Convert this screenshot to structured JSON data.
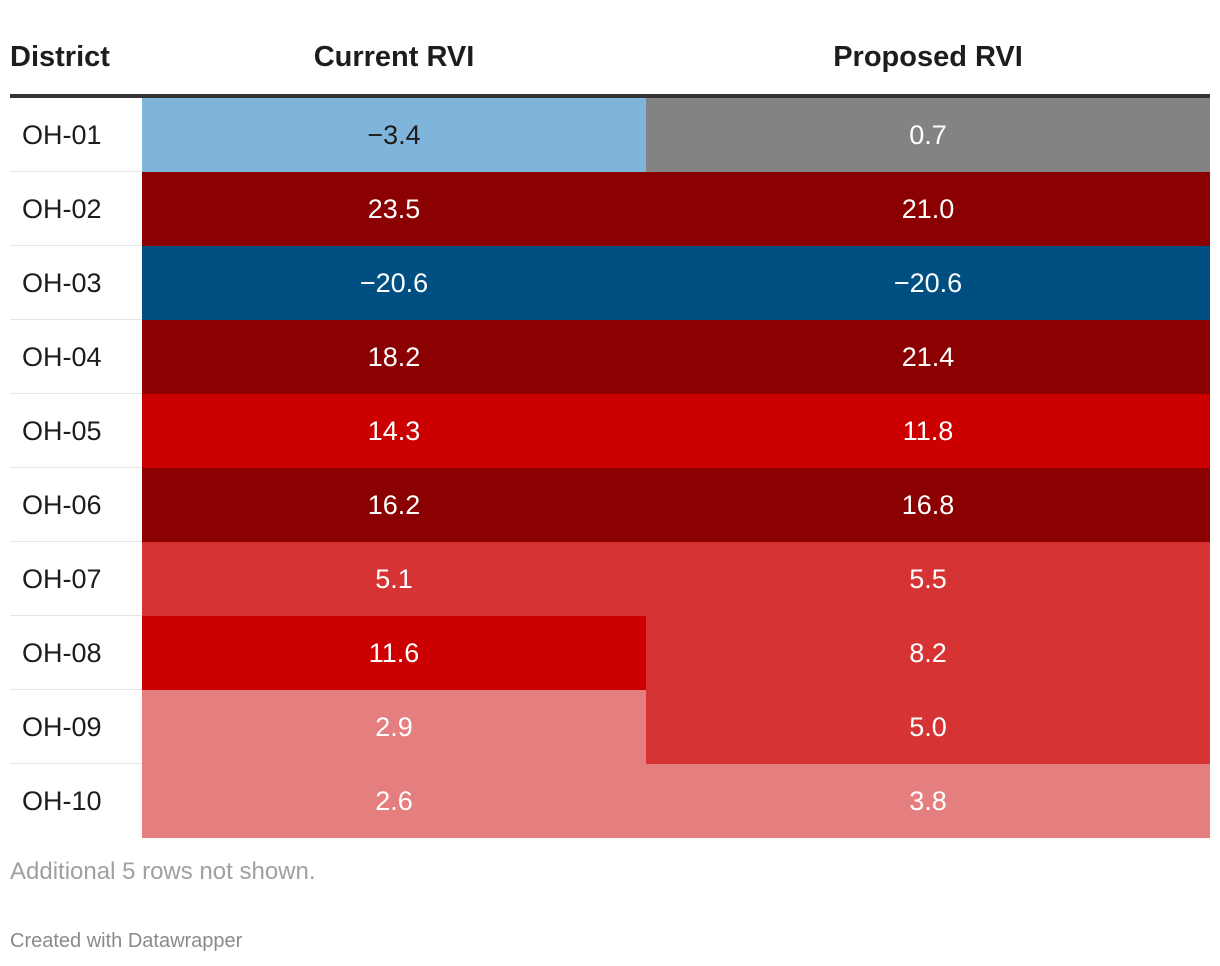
{
  "chart_data": {
    "type": "table",
    "columns": [
      "District",
      "Current RVI",
      "Proposed RVI"
    ],
    "rows": [
      {
        "district": "OH-01",
        "current": "−3.4",
        "proposed": "0.7",
        "current_color": "#80b5db",
        "proposed_color": "#838383",
        "current_text": "dark",
        "proposed_text": "light"
      },
      {
        "district": "OH-02",
        "current": "23.5",
        "proposed": "21.0",
        "current_color": "#8b0000",
        "proposed_color": "#8b0000",
        "current_text": "light",
        "proposed_text": "light"
      },
      {
        "district": "OH-03",
        "current": "−20.6",
        "proposed": "−20.6",
        "current_color": "#004f82",
        "proposed_color": "#004f82",
        "current_text": "light",
        "proposed_text": "light"
      },
      {
        "district": "OH-04",
        "current": "18.2",
        "proposed": "21.4",
        "current_color": "#8b0000",
        "proposed_color": "#8b0000",
        "current_text": "light",
        "proposed_text": "light"
      },
      {
        "district": "OH-05",
        "current": "14.3",
        "proposed": "11.8",
        "current_color": "#cc0000",
        "proposed_color": "#cc0000",
        "current_text": "light",
        "proposed_text": "light"
      },
      {
        "district": "OH-06",
        "current": "16.2",
        "proposed": "16.8",
        "current_color": "#8b0000",
        "proposed_color": "#8b0000",
        "current_text": "light",
        "proposed_text": "light"
      },
      {
        "district": "OH-07",
        "current": "5.1",
        "proposed": "5.5",
        "current_color": "#d63434",
        "proposed_color": "#d63434",
        "current_text": "light",
        "proposed_text": "light"
      },
      {
        "district": "OH-08",
        "current": "11.6",
        "proposed": "8.2",
        "current_color": "#cc0000",
        "proposed_color": "#d63434",
        "current_text": "light",
        "proposed_text": "light"
      },
      {
        "district": "OH-09",
        "current": "2.9",
        "proposed": "5.0",
        "current_color": "#e57f7f",
        "proposed_color": "#d63434",
        "current_text": "light",
        "proposed_text": "light"
      },
      {
        "district": "OH-10",
        "current": "2.6",
        "proposed": "3.8",
        "current_color": "#e57f7f",
        "proposed_color": "#e57f7f",
        "current_text": "light",
        "proposed_text": "light"
      }
    ]
  },
  "footer": {
    "note": "Additional 5 rows not shown.",
    "credit": "Created with Datawrapper"
  }
}
